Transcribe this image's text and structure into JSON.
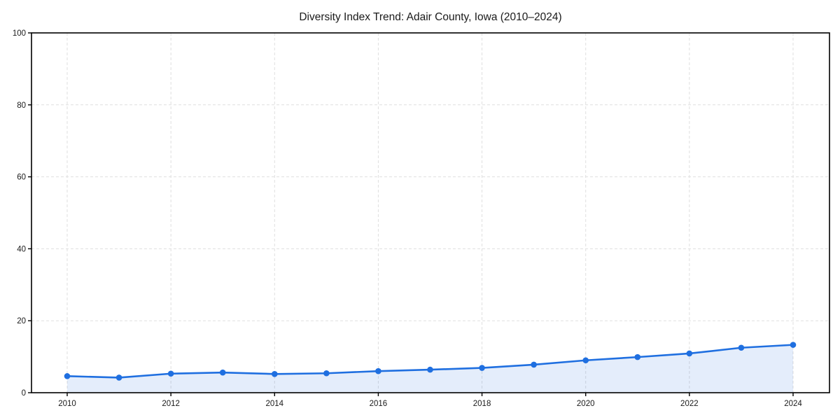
{
  "page": {
    "background_color": "#ffffff"
  },
  "chart_data": {
    "type": "line",
    "title": "Diversity Index Trend: Adair County, Iowa (2010–2024)",
    "x": [
      2010,
      2011,
      2012,
      2013,
      2014,
      2015,
      2016,
      2017,
      2018,
      2019,
      2020,
      2021,
      2022,
      2023,
      2024
    ],
    "values": [
      4.6,
      4.2,
      5.3,
      5.6,
      5.2,
      5.4,
      6.0,
      6.4,
      6.9,
      7.8,
      9.0,
      9.9,
      10.9,
      12.5,
      13.3
    ],
    "xlabel": "",
    "ylabel": "",
    "ylim": [
      0,
      100
    ],
    "yticks": [
      0,
      20,
      40,
      60,
      80,
      100
    ],
    "xticks": [
      2010,
      2012,
      2014,
      2016,
      2018,
      2020,
      2022,
      2024
    ],
    "grid": true,
    "grid_style": "dashed",
    "legend_position": "none",
    "line_color": "#1f6fe0",
    "marker": "circle",
    "fill_area": true,
    "fill_opacity": 0.12,
    "grid_color": "#dfdfdf",
    "axis_color": "#000000",
    "text_color": "#1a1a1a"
  }
}
